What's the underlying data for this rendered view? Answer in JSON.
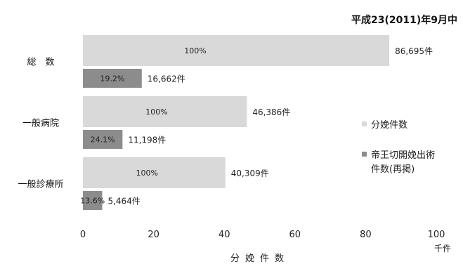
{
  "chart_data": {
    "type": "bar",
    "orientation": "horizontal",
    "period_label": "平成23(2011)年9月中",
    "xlabel": "分娩件数",
    "x_unit": "千件",
    "xlim": [
      0,
      100
    ],
    "xticks": [
      "0",
      "20",
      "40",
      "60",
      "80",
      "100"
    ],
    "grid": false,
    "legend_position": "right",
    "categories": [
      {
        "label": "総　数"
      },
      {
        "label": "一般病院"
      },
      {
        "label": "一般診療所"
      }
    ],
    "series": [
      {
        "name": "分娩件数",
        "color": "#d9d9d9",
        "values": [
          86.695,
          46.386,
          40.309
        ],
        "value_labels": [
          "86,695件",
          "46,386件",
          "40,309件"
        ],
        "pct_labels": [
          "100%",
          "100%",
          "100%"
        ]
      },
      {
        "name": "帝王切開娩出術件数(再掲)",
        "legend_lines": [
          "帝王切開娩出術",
          "件数(再掲)"
        ],
        "color": "#8c8c8c",
        "values": [
          16.662,
          11.198,
          5.464
        ],
        "value_labels": [
          "16,662件",
          "11,198件",
          "5,464件"
        ],
        "pct_labels": [
          "19.2%",
          "24.1%",
          "13.6%"
        ]
      }
    ]
  }
}
